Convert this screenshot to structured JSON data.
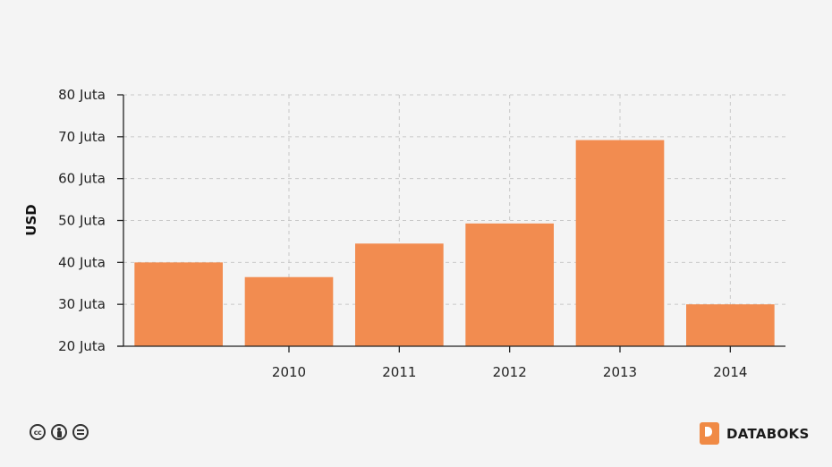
{
  "chart_data": {
    "type": "bar",
    "categories": [
      "",
      "2010",
      "2011",
      "2012",
      "2013",
      "2014"
    ],
    "values": [
      40,
      36.5,
      44.5,
      49.3,
      69.2,
      30
    ],
    "ylabel": "USD",
    "xlabel": "",
    "ylim": [
      20,
      80
    ],
    "yticks": [
      20,
      30,
      40,
      50,
      60,
      70,
      80
    ],
    "ytick_labels": [
      "20 Juta",
      "30 Juta",
      "40 Juta",
      "50 Juta",
      "60 Juta",
      "70 Juta",
      "80 Juta"
    ],
    "bar_color": "#f28c50",
    "grid": true
  },
  "footer": {
    "license_icons": [
      "cc-icon",
      "by-icon",
      "nd-icon"
    ],
    "cc_text": "cc",
    "brand_name": "DATABOKS",
    "brand_color": "#f08a45"
  }
}
